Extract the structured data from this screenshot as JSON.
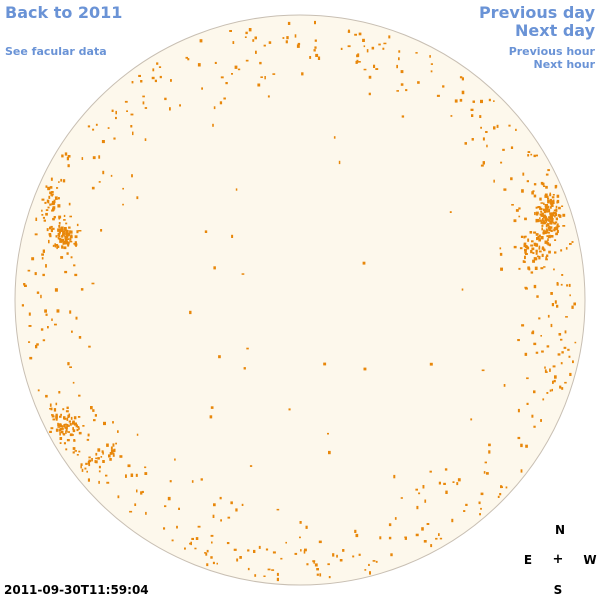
{
  "nav": {
    "back_label": "Back to 2011",
    "facular_label": "See facular data",
    "prev_day_label": "Previous day",
    "next_day_label": "Next day",
    "prev_hour_label": "Previous hour",
    "next_hour_label": "Next hour"
  },
  "timestamp": "2011-09-30T11:59:04",
  "compass": {
    "north": "N",
    "south": "S",
    "east": "E",
    "west": "W",
    "center": "+"
  },
  "colors": {
    "link": "#6a93d6",
    "disk_fill": "#fdf8ec",
    "disk_border": "#c8bfb3",
    "facula": "#e8870a"
  },
  "icons": {
    "sun_disk": "solar-disk-image",
    "facula_marker": "facula-dot"
  }
}
